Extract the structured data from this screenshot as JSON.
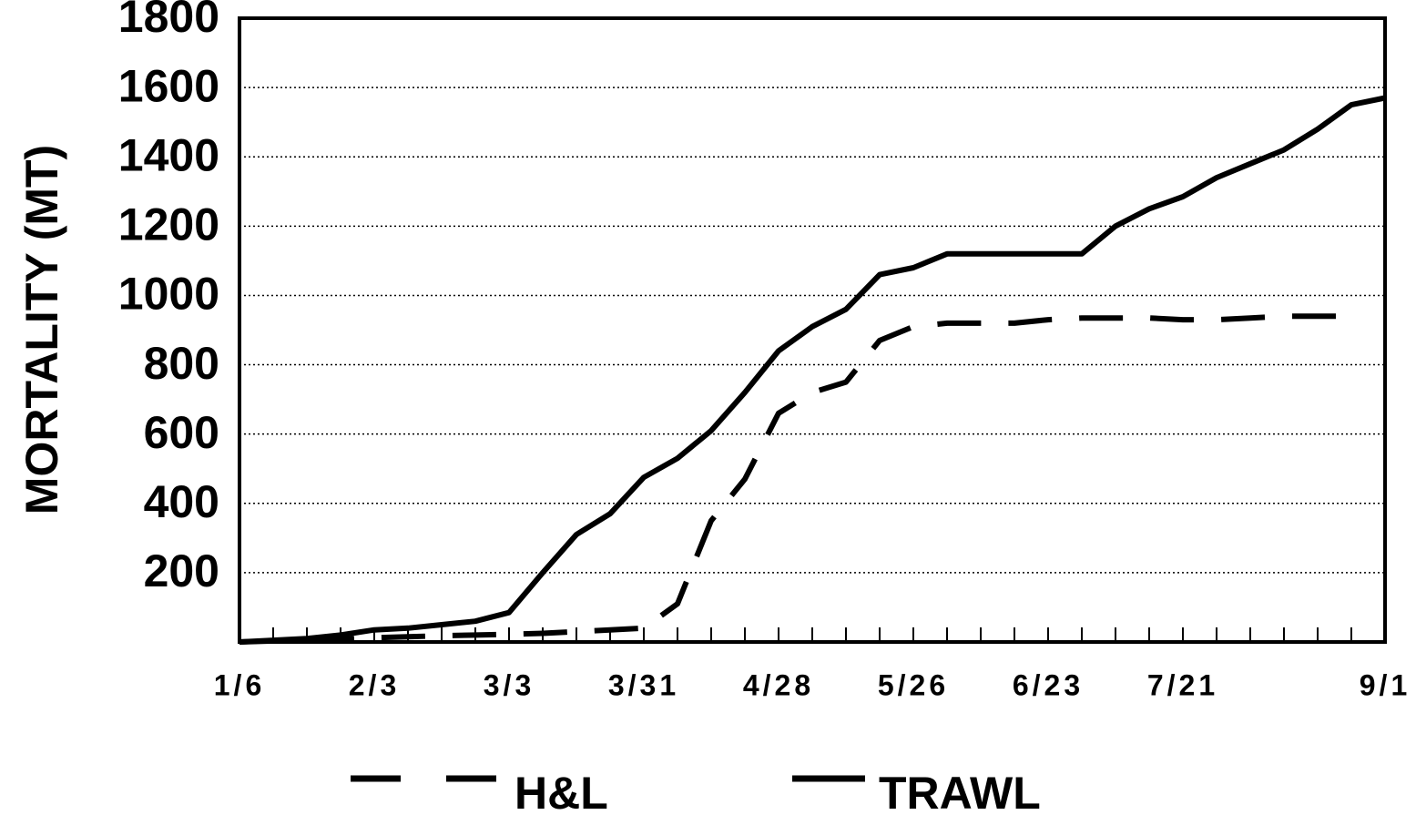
{
  "chart_data": {
    "type": "line",
    "y_label": "MORTALITY (MT)",
    "categories": [
      "1/6",
      null,
      null,
      null,
      "2/3",
      null,
      null,
      null,
      "3/3",
      null,
      null,
      null,
      "3/31",
      null,
      null,
      null,
      "4/28",
      null,
      null,
      null,
      "5/26",
      null,
      null,
      null,
      "6/23",
      null,
      null,
      null,
      "7/21",
      null,
      null,
      null,
      null,
      null,
      "9/1"
    ],
    "series": [
      {
        "name": "H&L",
        "color": "#000000",
        "style": "dashed",
        "values": [
          0,
          3,
          5,
          8,
          12,
          15,
          18,
          20,
          22,
          25,
          30,
          35,
          40,
          110,
          350,
          470,
          660,
          720,
          750,
          870,
          910,
          920,
          920,
          920,
          930,
          935,
          935,
          935,
          930,
          930,
          935,
          940,
          940,
          940,
          null
        ]
      },
      {
        "name": "TRAWL",
        "color": "#000000",
        "style": "solid",
        "values": [
          0,
          5,
          10,
          20,
          35,
          40,
          50,
          60,
          85,
          200,
          310,
          370,
          475,
          530,
          610,
          720,
          840,
          910,
          960,
          1060,
          1080,
          1120,
          1120,
          1120,
          1120,
          1120,
          1200,
          1250,
          1285,
          1340,
          1380,
          1420,
          1480,
          1550,
          1570
        ]
      }
    ],
    "ylim": [
      0,
      1800
    ],
    "yticks": [
      200,
      400,
      600,
      800,
      1000,
      1200,
      1400,
      1600,
      1800
    ],
    "grid": true,
    "legend": "bottom"
  }
}
